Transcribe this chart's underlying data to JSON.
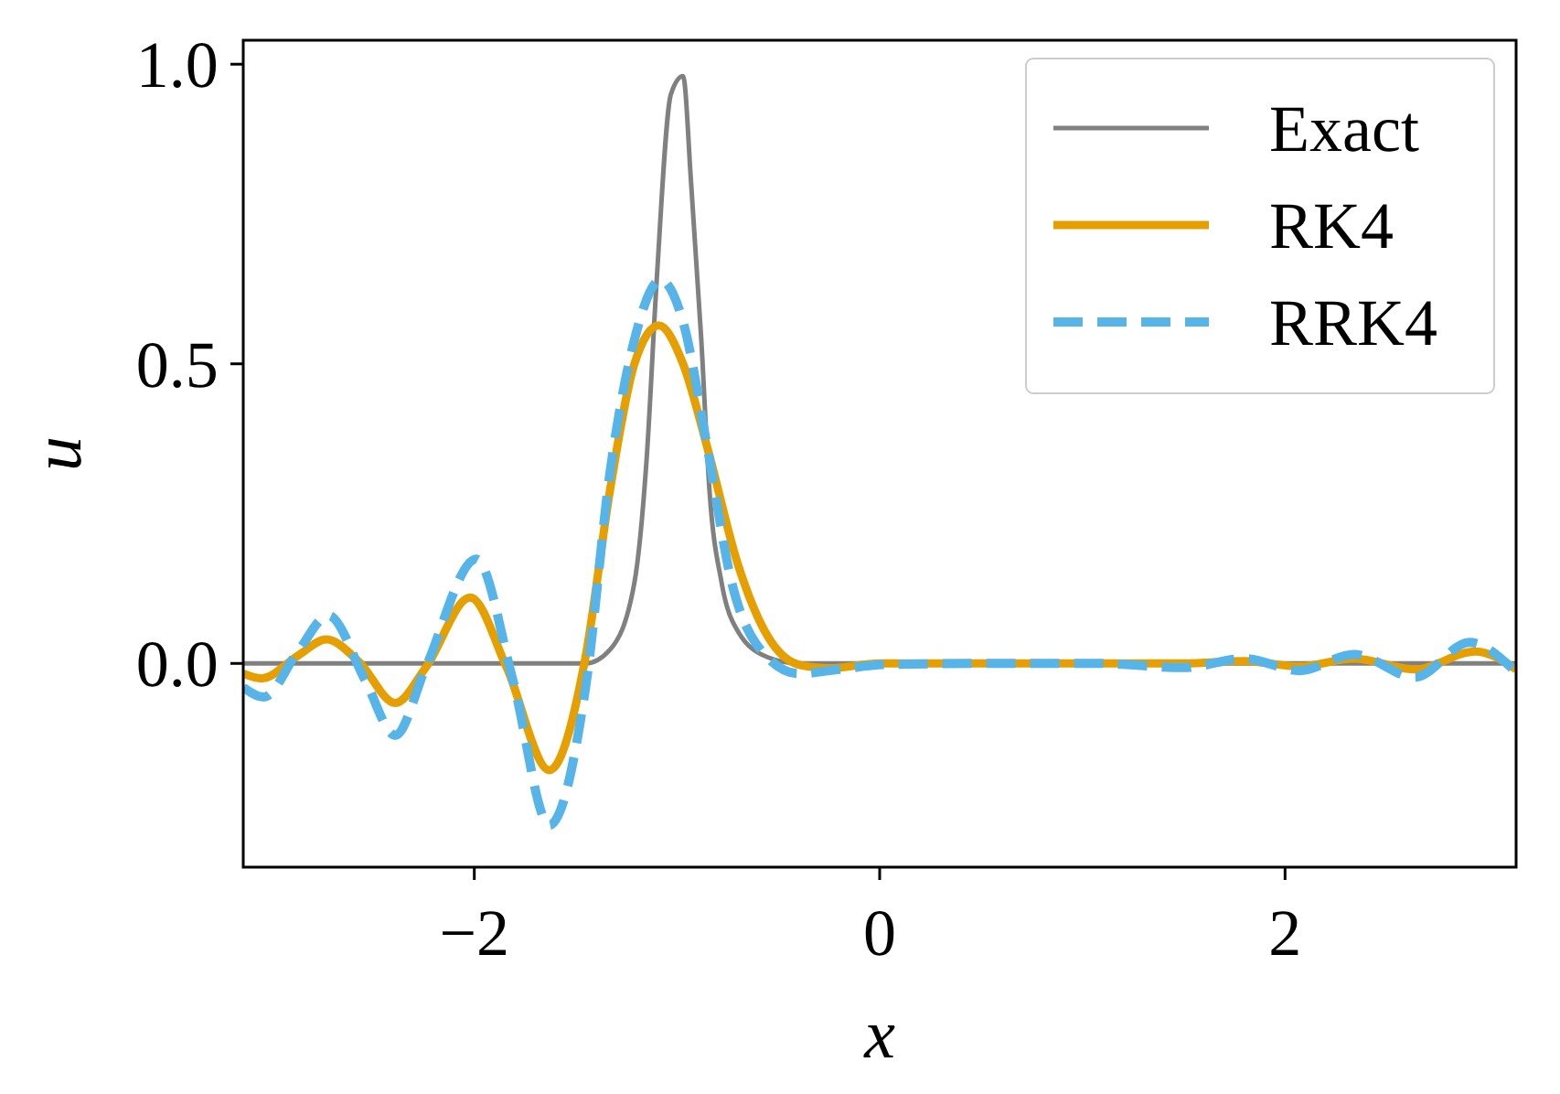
{
  "chart_data": {
    "type": "line",
    "xlabel": "x",
    "ylabel": "u",
    "xlim": [
      -3.14,
      3.14
    ],
    "ylim": [
      -0.34,
      1.04
    ],
    "xticks": [
      {
        "value": -2,
        "label": "−2"
      },
      0,
      2
    ],
    "yticks": [
      {
        "value": 0,
        "label": "0.0"
      },
      0.5,
      {
        "value": 1,
        "label": "1.0"
      }
    ],
    "grid": false,
    "legend": "top right",
    "series": [
      {
        "name": "Exact",
        "color": "#808080",
        "line_style": "solid",
        "x": [
          -3.14,
          -2,
          -1.45,
          -1.33,
          -1.21,
          -1.15,
          -1.1,
          -1.03,
          -0.97,
          -0.93,
          -0.88,
          -0.84,
          -0.78,
          -0.7,
          -0.55,
          -0.4,
          0,
          1,
          2,
          3.14
        ],
        "values": [
          0,
          0,
          0,
          0.023,
          0.135,
          0.34,
          0.64,
          0.95,
          0.98,
          0.8,
          0.54,
          0.29,
          0.135,
          0.054,
          0.01,
          0,
          0,
          0,
          0,
          0
        ]
      },
      {
        "name": "RK4",
        "color": "#e69f00",
        "line_style": "solid",
        "x": [
          -3.14,
          -3.05,
          -2.87,
          -2.73,
          -2.57,
          -2.39,
          -2.24,
          -2.02,
          -1.84,
          -1.63,
          -1.45,
          -1.33,
          -1.21,
          -1.09,
          -0.97,
          -0.85,
          -0.7,
          -0.55,
          -0.4,
          -0.25,
          0,
          0.5,
          1,
          1.5,
          1.8,
          2.07,
          2.34,
          2.64,
          2.94,
          3.14
        ],
        "values": [
          -0.017,
          -0.025,
          0.013,
          0.04,
          0.003,
          -0.066,
          -0.007,
          0.11,
          -0.007,
          -0.178,
          0.013,
          0.29,
          0.5,
          0.564,
          0.5,
          0.36,
          0.166,
          0.044,
          -0.002,
          -0.008,
          0,
          0,
          0,
          0,
          0.004,
          -0.005,
          0.008,
          -0.01,
          0.02,
          -0.01
        ]
      },
      {
        "name": "RRK4",
        "color": "#56b4e9",
        "line_style": "dashed",
        "x": [
          -3.14,
          -3.04,
          -2.87,
          -2.72,
          -2.54,
          -2.39,
          -2.24,
          -1.99,
          -1.81,
          -1.63,
          -1.45,
          -1.33,
          -1.21,
          -1.08,
          -0.97,
          -0.85,
          -0.73,
          -0.61,
          -0.4,
          -0.2,
          0.02,
          0.5,
          1.07,
          1.5,
          1.8,
          2.07,
          2.34,
          2.64,
          2.91,
          3.12
        ],
        "values": [
          -0.04,
          -0.056,
          0.02,
          0.08,
          -0.027,
          -0.12,
          -0.007,
          0.174,
          -0.027,
          -0.27,
          -0.038,
          0.32,
          0.54,
          0.64,
          0.57,
          0.36,
          0.135,
          0.033,
          -0.017,
          -0.01,
          -0.002,
          0,
          0,
          -0.007,
          0.008,
          -0.012,
          0.015,
          -0.023,
          0.035,
          -0.008
        ]
      }
    ]
  }
}
